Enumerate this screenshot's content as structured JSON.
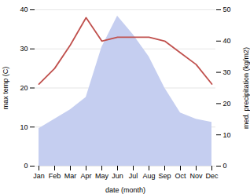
{
  "chart_data": {
    "type": "line",
    "categories": [
      "Jan",
      "Feb",
      "Mar",
      "Apr",
      "May",
      "Jun",
      "Jul",
      "Aug",
      "Sep",
      "Oct",
      "Nov",
      "Dec"
    ],
    "xlabel": "date (month)",
    "ylabel": "max temp (C)",
    "y2label": "med. precipitation (kg/m2)",
    "series": [
      {
        "type": "area",
        "axis": "y2",
        "color": "#c5cef0",
        "values": [
          12,
          15,
          18,
          22,
          38,
          48,
          42,
          35,
          25,
          17,
          15,
          14
        ]
      },
      {
        "type": "line",
        "color": "#c0504d",
        "values": [
          21,
          25,
          31,
          38,
          32,
          33,
          33,
          33,
          32,
          29,
          26,
          21
        ]
      }
    ],
    "ylim": [
      0,
      40
    ],
    "yticks": [
      0,
      10,
      20,
      30,
      40
    ],
    "y2lim": [
      0,
      50
    ],
    "y2ticks": [
      0,
      10,
      20,
      30,
      40,
      50
    ],
    "grid": true
  }
}
